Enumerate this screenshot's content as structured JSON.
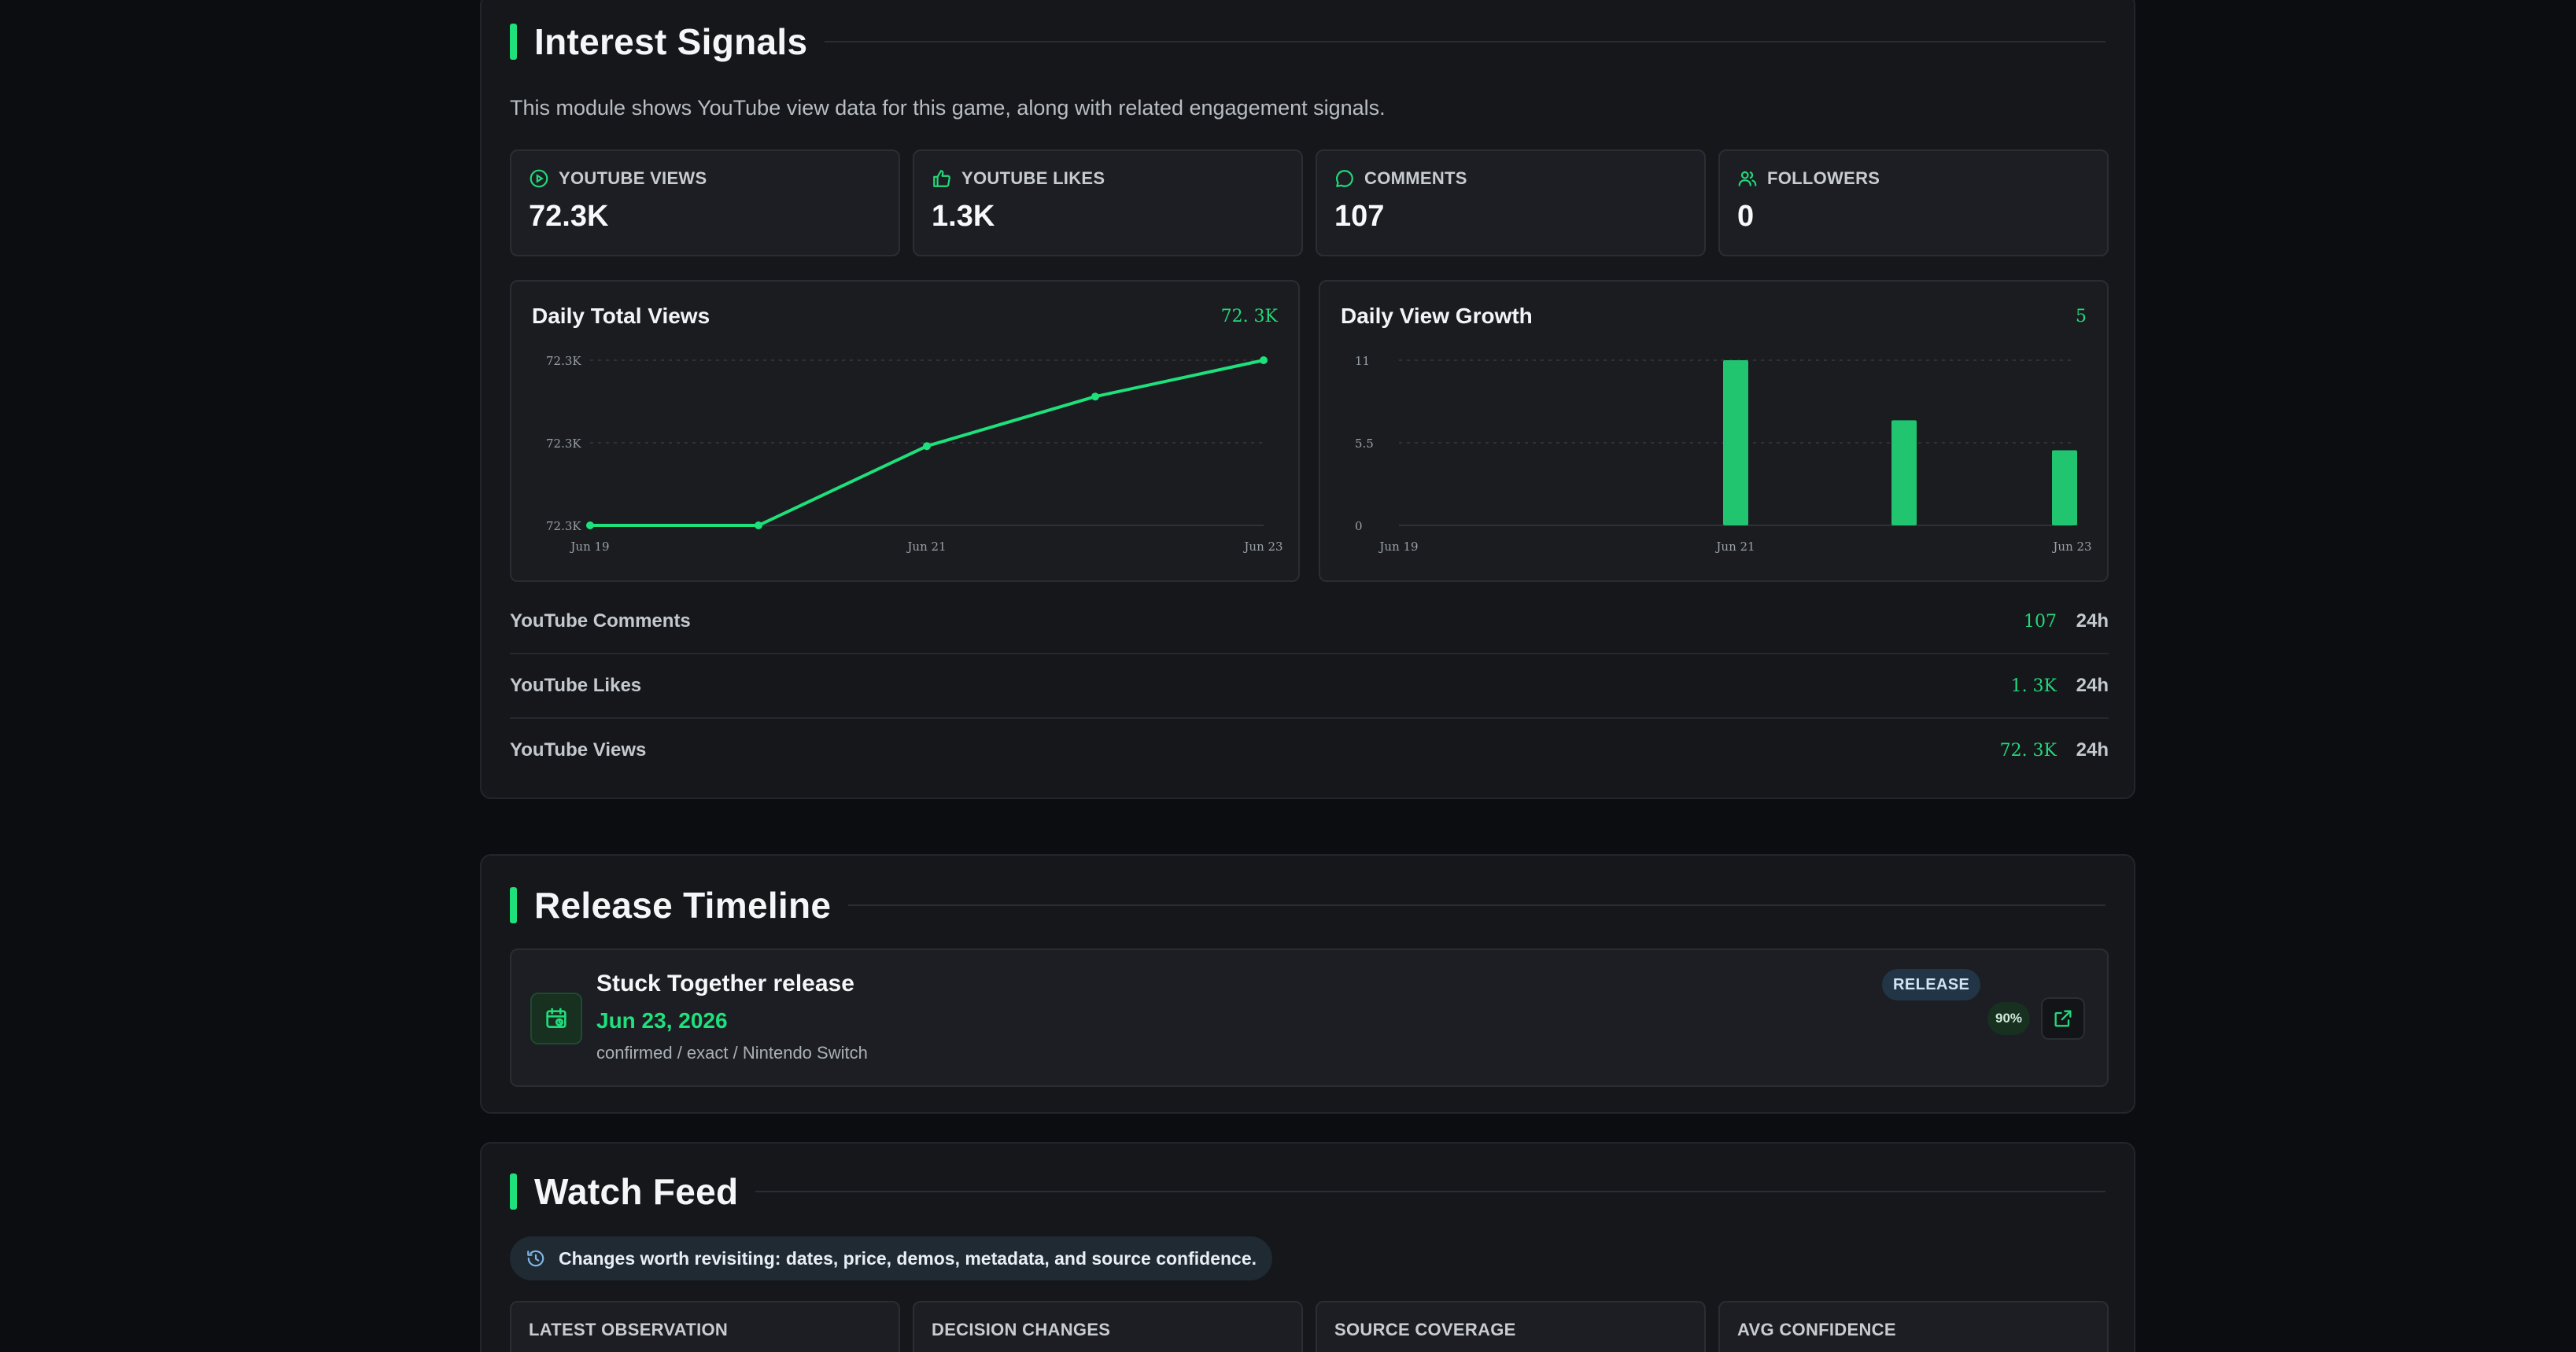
{
  "interest": {
    "title": "Interest Signals",
    "description": "This module shows YouTube view data for this game, along with related engagement signals.",
    "stats": [
      {
        "label": "YOUTUBE VIEWS",
        "value": "72.3K",
        "icon": "play-circle-icon"
      },
      {
        "label": "YOUTUBE LIKES",
        "value": "1.3K",
        "icon": "thumbs-up-icon"
      },
      {
        "label": "COMMENTS",
        "value": "107",
        "icon": "comment-icon"
      },
      {
        "label": "FOLLOWERS",
        "value": "0",
        "icon": "users-icon"
      }
    ],
    "total_views_chart": {
      "title": "Daily Total Views",
      "current": "72. 3K"
    },
    "growth_chart": {
      "title": "Daily View Growth",
      "current": "5"
    },
    "metrics": [
      {
        "name": "YouTube Comments",
        "value": "107",
        "period": "24h"
      },
      {
        "name": "YouTube Likes",
        "value": "1. 3K",
        "period": "24h"
      },
      {
        "name": "YouTube Views",
        "value": "72. 3K",
        "period": "24h"
      }
    ]
  },
  "timeline": {
    "title": "Release Timeline",
    "event": {
      "title": "Stuck Together release",
      "date": "Jun 23, 2026",
      "meta": "confirmed / exact / Nintendo Switch",
      "badge": "RELEASE",
      "confidence": "90%"
    }
  },
  "watch": {
    "title": "Watch Feed",
    "notice": "Changes worth revisiting: dates, price, demos, metadata, and source confidence.",
    "cards": [
      {
        "label": "LATEST OBSERVATION"
      },
      {
        "label": "DECISION CHANGES"
      },
      {
        "label": "SOURCE COVERAGE"
      },
      {
        "label": "AVG CONFIDENCE"
      }
    ]
  },
  "colors": {
    "accent": "#1ee17c",
    "background": "#0c0d10",
    "panel": "#15171b"
  },
  "chart_data": [
    {
      "type": "line",
      "title": "Daily Total Views",
      "x": [
        "Jun 19",
        "Jun 20",
        "Jun 21",
        "Jun 22",
        "Jun 23"
      ],
      "x_tick_labels": [
        "Jun 19",
        "Jun 21",
        "Jun 23"
      ],
      "y_tick_labels": [
        "72.3K",
        "72.3K",
        "72.3K"
      ],
      "series": [
        {
          "values": [
            72250,
            72250,
            72274,
            72289,
            72300
          ]
        }
      ],
      "ylim": [
        72250,
        72300
      ],
      "grid": true
    },
    {
      "type": "bar",
      "title": "Daily View Growth",
      "x": [
        "Jun 19",
        "Jun 20",
        "Jun 21",
        "Jun 22",
        "Jun 23"
      ],
      "x_tick_labels": [
        "Jun 19",
        "Jun 21",
        "Jun 23"
      ],
      "y_tick_labels": [
        "11",
        "5.5",
        "0"
      ],
      "values": [
        0,
        0,
        11,
        7,
        5
      ],
      "ylim": [
        0,
        11
      ],
      "grid": true
    }
  ]
}
